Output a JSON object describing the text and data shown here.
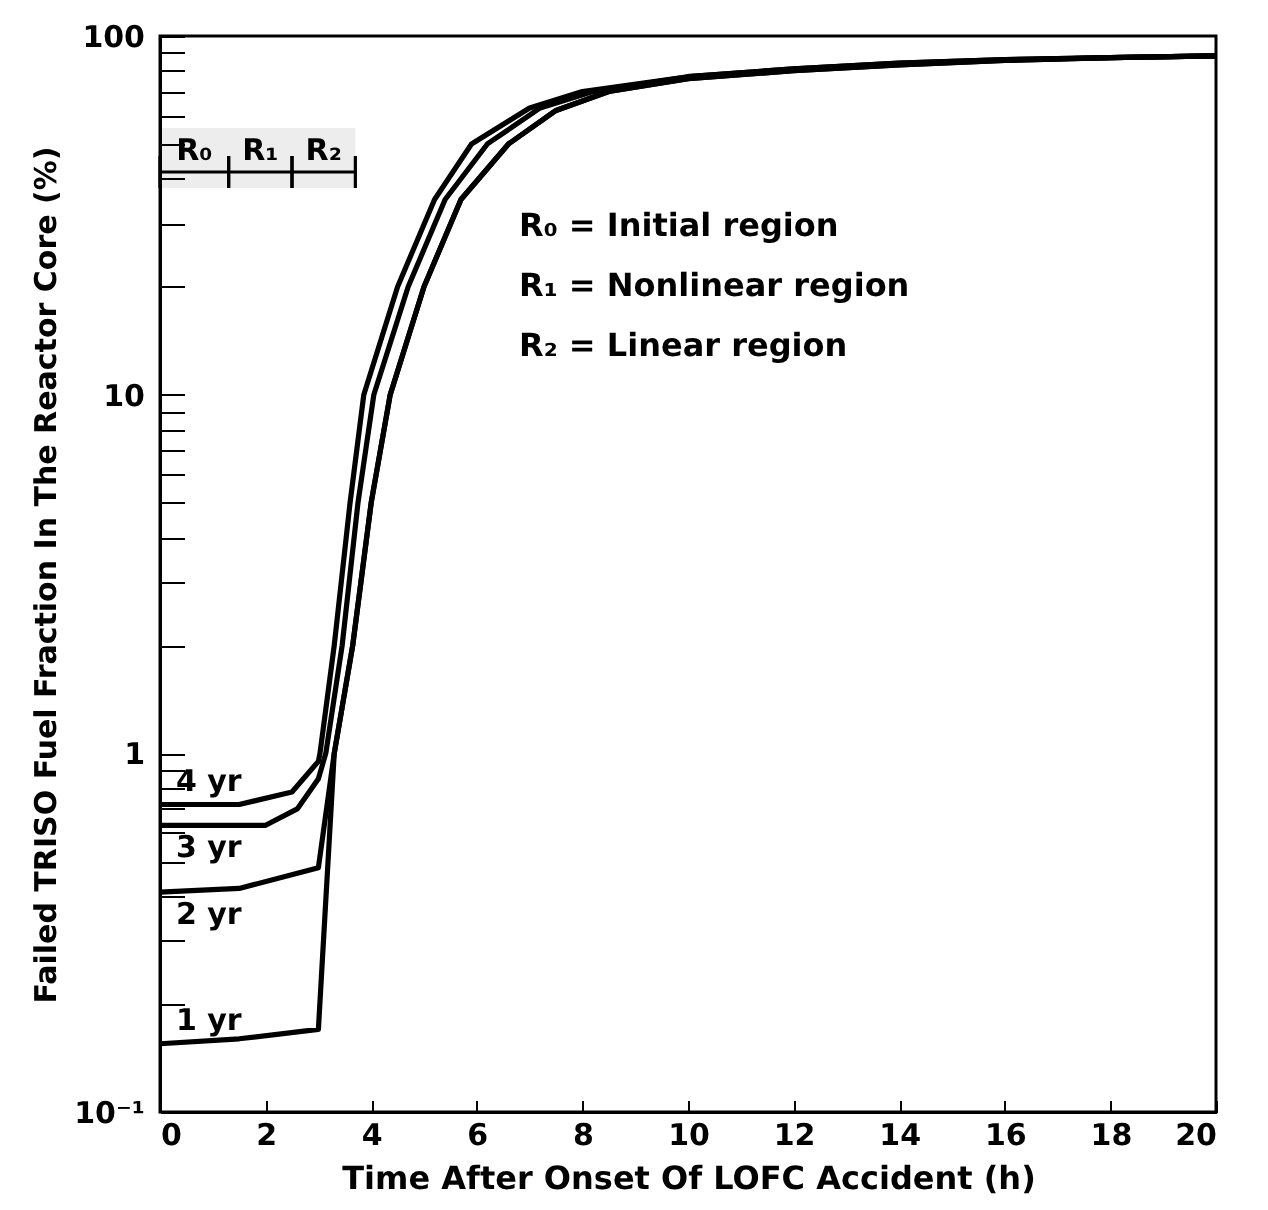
{
  "chart_data": {
    "type": "line",
    "xlabel": "Time After Onset Of LOFC Accident (h)",
    "ylabel": "Failed TRISO Fuel Fraction In The Reactor Core (%)",
    "log": "y",
    "xlim": [
      0,
      20
    ],
    "ylim": [
      0.1,
      100
    ],
    "xticks": [
      0,
      2,
      4,
      6,
      8,
      10,
      12,
      14,
      16,
      18,
      20
    ],
    "yticks": [
      {
        "value": 0.1,
        "label": "10⁻¹"
      },
      {
        "value": 0.2,
        "label": null
      },
      {
        "value": 0.3,
        "label": null
      },
      {
        "value": 0.4,
        "label": null
      },
      {
        "value": 0.5,
        "label": null
      },
      {
        "value": 0.6,
        "label": null
      },
      {
        "value": 0.7,
        "label": null
      },
      {
        "value": 0.8,
        "label": null
      },
      {
        "value": 0.9,
        "label": null
      },
      1,
      {
        "value": 2,
        "label": null
      },
      {
        "value": 3,
        "label": null
      },
      {
        "value": 4,
        "label": null
      },
      {
        "value": 5,
        "label": null
      },
      {
        "value": 6,
        "label": null
      },
      {
        "value": 7,
        "label": null
      },
      {
        "value": 8,
        "label": null
      },
      {
        "value": 9,
        "label": null
      },
      10,
      {
        "value": 20,
        "label": null
      },
      {
        "value": 30,
        "label": null
      },
      {
        "value": 40,
        "label": null
      },
      {
        "value": 50,
        "label": null
      },
      {
        "value": 60,
        "label": null
      },
      {
        "value": 70,
        "label": null
      },
      {
        "value": 80,
        "label": null
      },
      {
        "value": 90,
        "label": null
      },
      100
    ],
    "grid": false,
    "marker": "none",
    "line_style": "solid",
    "series": [
      {
        "name": "4 yr",
        "color": "#000000",
        "x": [
          0,
          1.5,
          2.5,
          3,
          3.03,
          3.3,
          3.6,
          3.86,
          4.5,
          5.2,
          5.9,
          7,
          8,
          10,
          12,
          14,
          16,
          18,
          20
        ],
        "values": [
          0.72,
          0.72,
          0.78,
          0.95,
          1,
          2,
          5,
          10,
          20,
          35,
          50,
          63,
          70,
          77,
          81,
          84,
          86,
          87,
          88
        ]
      },
      {
        "name": "3 yr",
        "color": "#000000",
        "x": [
          0,
          2,
          2.6,
          3,
          3.14,
          3.45,
          3.75,
          4.05,
          4.7,
          5.4,
          6.2,
          7.2,
          8.2,
          10,
          12,
          14,
          16,
          18,
          20
        ],
        "values": [
          0.63,
          0.63,
          0.7,
          0.85,
          1,
          2,
          5,
          10,
          20,
          35,
          50,
          63,
          70,
          77,
          81,
          84,
          86,
          87,
          88
        ]
      },
      {
        "name": "2 yr",
        "color": "#000000",
        "x": [
          0,
          1.5,
          3,
          3.3,
          3.65,
          4,
          4.36,
          5,
          5.7,
          6.6,
          7.5,
          8.5,
          10,
          12,
          14,
          16,
          18,
          20
        ],
        "values": [
          0.41,
          0.42,
          0.48,
          1,
          2,
          5,
          10,
          20,
          35,
          50,
          62,
          70,
          76,
          80,
          83,
          85.5,
          87,
          88
        ]
      },
      {
        "name": "1 yr",
        "color": "#000000",
        "x": [
          0,
          1.5,
          3,
          3.3,
          3.65,
          4,
          4.36,
          5,
          5.7,
          6.6,
          7.5,
          8.5,
          10,
          12,
          14,
          16,
          18,
          20
        ],
        "values": [
          0.155,
          0.16,
          0.17,
          1,
          2,
          5,
          10,
          20,
          35,
          50,
          62,
          70,
          76,
          80,
          83,
          85.5,
          87,
          88
        ]
      }
    ],
    "bands": [
      {
        "axis": "x",
        "from": 0,
        "to": 1.3,
        "label": "R₀"
      },
      {
        "axis": "x",
        "from": 1.3,
        "to": 2.5,
        "label": "R₁"
      },
      {
        "axis": "x",
        "from": 2.5,
        "to": 3.7,
        "label": "R₂"
      }
    ],
    "annotations": [
      "R₀ = Initial region",
      "R₁ = Nonlinear region",
      "R₂ = Linear region"
    ]
  }
}
